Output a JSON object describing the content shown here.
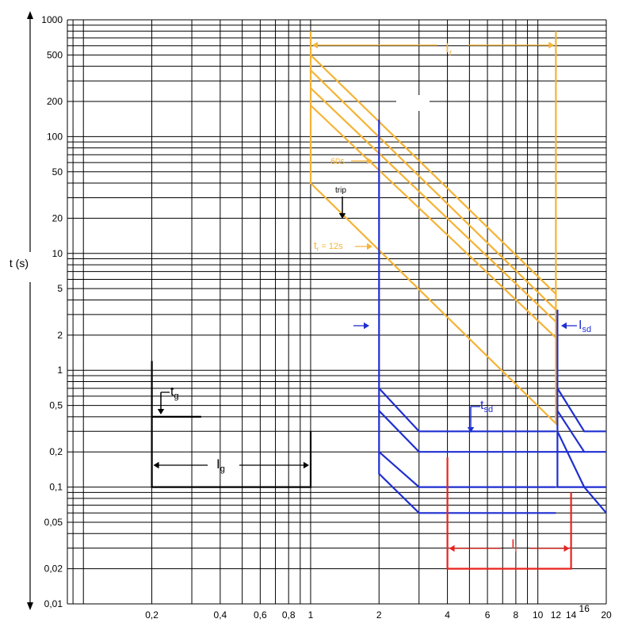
{
  "chart_data": {
    "type": "line",
    "title": "",
    "xlabel": "",
    "ylabel": "t (s)",
    "xscale": "log",
    "yscale": "log",
    "xlim": [
      0.085,
      20
    ],
    "ylim": [
      0.01,
      1000
    ],
    "grid": true,
    "x_ticks": [
      "0,2",
      "0,4",
      "0,6",
      "0,8",
      "1",
      "2",
      "4",
      "6",
      "8",
      "10",
      "12",
      "14",
      "16",
      "20"
    ],
    "x_tick_values": [
      0.2,
      0.4,
      0.6,
      0.8,
      1,
      2,
      4,
      6,
      8,
      10,
      12,
      14,
      16,
      20
    ],
    "y_ticks": [
      "1000",
      "500",
      "200",
      "100",
      "50",
      "20",
      "10",
      "5",
      "2",
      "1",
      "0,5",
      "0,2",
      "0,1",
      "0,05",
      "0,02",
      "0,01"
    ],
    "y_tick_values": [
      1000,
      500,
      200,
      100,
      50,
      20,
      10,
      5,
      2,
      1,
      0.5,
      0.2,
      0.1,
      0.05,
      0.02,
      0.01
    ],
    "colors": {
      "long_time": "#f5b335",
      "short_time": "#1f2fd0",
      "instantaneous": "#e8231f",
      "ground": "#000000"
    },
    "series": [
      {
        "color": "long_time",
        "points": [
          [
            1,
            800
          ],
          [
            1,
            40
          ],
          [
            12,
            0.35
          ],
          [
            12,
            800
          ]
        ]
      },
      {
        "color": "long_time",
        "points": [
          [
            1,
            500
          ],
          [
            12,
            4.5
          ]
        ]
      },
      {
        "color": "long_time",
        "points": [
          [
            1,
            370
          ],
          [
            12,
            3.3
          ]
        ]
      },
      {
        "color": "long_time",
        "points": [
          [
            1,
            260
          ],
          [
            12,
            2.6
          ]
        ]
      },
      {
        "color": "long_time",
        "points": [
          [
            1,
            185
          ],
          [
            12,
            1.9
          ]
        ]
      },
      {
        "color": "short_time",
        "points": [
          [
            2,
            140
          ],
          [
            2,
            0.13
          ],
          [
            3,
            0.06
          ],
          [
            12,
            0.06
          ]
        ]
      },
      {
        "color": "short_time",
        "points": [
          [
            2,
            0.2
          ],
          [
            3,
            0.1
          ],
          [
            12,
            0.1
          ]
        ]
      },
      {
        "color": "short_time",
        "points": [
          [
            2,
            0.45
          ],
          [
            3,
            0.2
          ],
          [
            20,
            0.2
          ]
        ]
      },
      {
        "color": "short_time",
        "points": [
          [
            2,
            0.7
          ],
          [
            3,
            0.3
          ],
          [
            12,
            0.3
          ]
        ]
      },
      {
        "color": "short_time",
        "points": [
          [
            12.2,
            3.3
          ],
          [
            12.2,
            0.1
          ],
          [
            20,
            0.1
          ]
        ]
      },
      {
        "color": "short_time",
        "points": [
          [
            12.2,
            0.3
          ],
          [
            16,
            0.1
          ],
          [
            20,
            0.06
          ]
        ]
      },
      {
        "color": "short_time",
        "points": [
          [
            12.2,
            0.45
          ],
          [
            16,
            0.2
          ]
        ]
      },
      {
        "color": "short_time",
        "points": [
          [
            12.2,
            0.7
          ],
          [
            16,
            0.3
          ],
          [
            20,
            0.3
          ]
        ]
      },
      {
        "color": "instantaneous",
        "points": [
          [
            4,
            0.18
          ],
          [
            4,
            0.02
          ],
          [
            14,
            0.02
          ],
          [
            14,
            0.09
          ]
        ]
      },
      {
        "color": "ground",
        "points": [
          [
            0.2,
            1.2
          ],
          [
            0.2,
            0.1
          ],
          [
            1,
            0.1
          ],
          [
            1,
            0.3
          ]
        ]
      },
      {
        "color": "ground",
        "points": [
          [
            0.2,
            0.4
          ],
          [
            0.33,
            0.4
          ]
        ]
      }
    ],
    "annotations": [
      {
        "id": "ir",
        "text": "I",
        "sub": "r",
        "color": "long_time"
      },
      {
        "id": "sixty",
        "text": "60s",
        "color": "long_time"
      },
      {
        "id": "trip",
        "text": "trip",
        "color": "ground"
      },
      {
        "id": "tr",
        "text": "t",
        "sub": "r",
        "suffix": " = 12s",
        "color": "long_time"
      },
      {
        "id": "isd",
        "text": "I",
        "sub": "sd",
        "color": "short_time"
      },
      {
        "id": "tsd",
        "text": "t",
        "sub": "sd",
        "color": "short_time"
      },
      {
        "id": "tg",
        "text": "t",
        "sub": "g",
        "color": "ground"
      },
      {
        "id": "ig",
        "text": "I",
        "sub": "g",
        "color": "ground"
      },
      {
        "id": "ii",
        "text": "I",
        "sub": "i",
        "color": "instantaneous"
      }
    ]
  }
}
